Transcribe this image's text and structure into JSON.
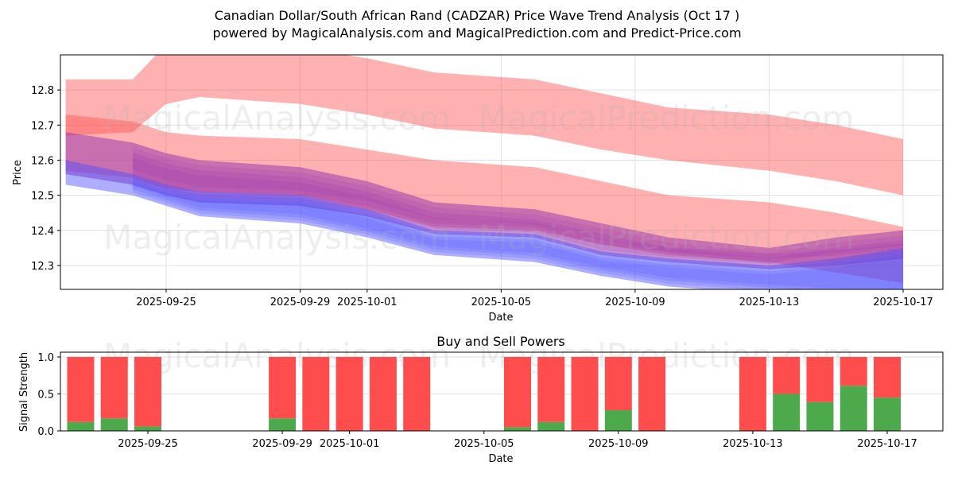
{
  "header": {
    "title": "Canadian Dollar/South African Rand (CADZAR) Price Wave Trend Analysis (Oct 17 )",
    "subtitle": "powered by MagicalAnalysis.com and MagicalPrediction.com and Predict-Price.com"
  },
  "watermarks": [
    "MagicalAnalysis.com",
    "MagicalPrediction.com"
  ],
  "colors": {
    "red_band": "#ff5050",
    "blue_band": "#4a4cff",
    "buy": "#4caa4c",
    "sell": "#ff4c4c",
    "grid": "#e0e0e0"
  },
  "chart_data": [
    {
      "type": "area",
      "title": "",
      "xlabel": "Date",
      "ylabel": "Price",
      "ylim": [
        12.232,
        12.9
      ],
      "xlim": [
        "2025-09-21.8",
        "2025-10-18.2"
      ],
      "grid": true,
      "x_ticks": [
        "2025-09-25",
        "2025-09-29",
        "2025-10-01",
        "2025-10-05",
        "2025-10-09",
        "2025-10-13",
        "2025-10-17"
      ],
      "y_ticks": [
        12.3,
        12.4,
        12.5,
        12.6,
        12.7,
        12.8
      ],
      "x": [
        "2025-09-22",
        "2025-09-24",
        "2025-09-25",
        "2025-09-26",
        "2025-09-29",
        "2025-10-01",
        "2025-10-03",
        "2025-10-06",
        "2025-10-08",
        "2025-10-10",
        "2025-10-13",
        "2025-10-15",
        "2025-10-17"
      ],
      "series": [
        {
          "name": "upper red wave band",
          "color": "red",
          "lower": [
            12.67,
            12.68,
            12.76,
            12.78,
            12.76,
            12.73,
            12.69,
            12.67,
            12.63,
            12.6,
            12.57,
            12.54,
            12.5
          ],
          "upper": [
            12.83,
            12.83,
            12.93,
            12.93,
            12.92,
            12.89,
            12.85,
            12.83,
            12.79,
            12.75,
            12.73,
            12.7,
            12.66
          ]
        },
        {
          "name": "lower red wave band",
          "color": "red",
          "lower": [
            12.57,
            12.55,
            12.52,
            12.51,
            12.5,
            12.46,
            12.41,
            12.4,
            12.36,
            12.33,
            12.31,
            12.28,
            12.25
          ],
          "upper": [
            12.73,
            12.71,
            12.68,
            12.67,
            12.66,
            12.63,
            12.6,
            12.58,
            12.54,
            12.5,
            12.48,
            12.45,
            12.41
          ]
        },
        {
          "name": "purple wave band",
          "color": "purple",
          "lower": [
            12.56,
            12.53,
            12.5,
            12.48,
            12.47,
            12.44,
            12.39,
            12.38,
            12.33,
            12.31,
            12.29,
            12.3,
            12.32
          ],
          "upper": [
            12.68,
            12.65,
            12.62,
            12.6,
            12.58,
            12.54,
            12.48,
            12.46,
            12.42,
            12.38,
            12.35,
            12.38,
            12.4
          ]
        },
        {
          "name": "blue wave band",
          "color": "blue",
          "lower": [
            12.53,
            12.5,
            12.47,
            12.44,
            12.42,
            12.38,
            12.33,
            12.31,
            12.27,
            12.24,
            12.22,
            12.21,
            12.2
          ],
          "upper": [
            12.6,
            12.56,
            12.53,
            12.51,
            12.5,
            12.46,
            12.4,
            12.39,
            12.34,
            12.32,
            12.3,
            12.32,
            12.35
          ]
        }
      ]
    },
    {
      "type": "bar",
      "title": "Buy and Sell Powers",
      "xlabel": "Date",
      "ylabel": "Signal Strength",
      "ylim": [
        0,
        1.05
      ],
      "grid": true,
      "y_ticks": [
        0.0,
        0.5,
        1.0
      ],
      "y_tick_labels": [
        "0.0",
        "0.5",
        "1.0"
      ],
      "x_ticks": [
        "2025-09-25",
        "2025-09-29",
        "2025-10-01",
        "2025-10-05",
        "2025-10-09",
        "2025-10-13",
        "2025-10-17"
      ],
      "categories": [
        "2025-09-23",
        "2025-09-24",
        "2025-09-25",
        "2025-09-29",
        "2025-09-30",
        "2025-10-01",
        "2025-10-02",
        "2025-10-03",
        "2025-10-06",
        "2025-10-07",
        "2025-10-08",
        "2025-10-09",
        "2025-10-10",
        "2025-10-13",
        "2025-10-14",
        "2025-10-15",
        "2025-10-16",
        "2025-10-17"
      ],
      "series": [
        {
          "name": "Buy",
          "values": [
            0.12,
            0.17,
            0.06,
            0.17,
            0.0,
            0.0,
            0.0,
            0.0,
            0.05,
            0.12,
            0.0,
            0.28,
            0.0,
            0.0,
            0.5,
            0.39,
            0.61,
            0.45
          ]
        },
        {
          "name": "Sell",
          "values": [
            0.88,
            0.83,
            0.94,
            0.83,
            1.0,
            1.0,
            1.0,
            1.0,
            0.95,
            0.88,
            1.0,
            0.72,
            1.0,
            1.0,
            0.5,
            0.61,
            0.39,
            0.55
          ]
        }
      ]
    }
  ]
}
